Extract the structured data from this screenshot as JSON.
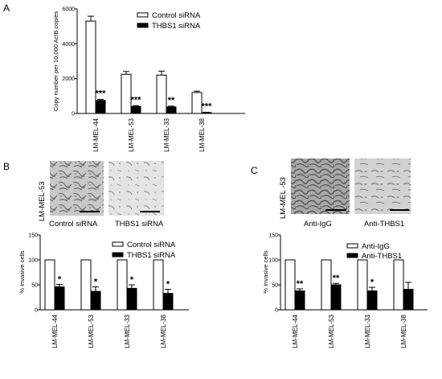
{
  "panels": {
    "A": {
      "label": "A"
    },
    "B": {
      "label": "B",
      "cell_line": "LM-MEL-53",
      "captions": [
        "Control siRNA",
        "THBS1 siRNA"
      ]
    },
    "C": {
      "label": "C",
      "cell_line": "LM-MEL -53",
      "captions": [
        "Anti-IgG",
        "Anti-THBS1"
      ]
    }
  },
  "chart_data": [
    {
      "id": "A",
      "type": "bar",
      "categories": [
        "LM-MEL-44",
        "LM-MEL-53",
        "LM-MEL-33",
        "LM-MEL-38"
      ],
      "ylabel": "Copy number per 10,000 ActB copies",
      "yticks": [
        "0",
        "2000",
        "4000",
        "6000"
      ],
      "ylim": [
        0,
        6000
      ],
      "series": [
        {
          "name": "Control siRNA",
          "fill": "#ffffff",
          "values": [
            5300,
            2250,
            2200,
            1200
          ],
          "errors": [
            280,
            160,
            230,
            80
          ]
        },
        {
          "name": "THBS1 siRNA",
          "fill": "#000000",
          "values": [
            750,
            400,
            370,
            50
          ],
          "errors": [
            60,
            50,
            50,
            20
          ]
        }
      ],
      "significance": [
        "***",
        "***",
        "**",
        "***"
      ],
      "legend_position": "top-right"
    },
    {
      "id": "B",
      "type": "bar",
      "categories": [
        "LM-MEL-44",
        "LM-MEL-53",
        "LM-MEL-33",
        "LM-MEL-38"
      ],
      "ylabel": "% Invasive cells",
      "yticks": [
        "0",
        "50",
        "100",
        "150"
      ],
      "ylim": [
        0,
        150
      ],
      "series": [
        {
          "name": "Control siRNA",
          "fill": "#ffffff",
          "values": [
            100,
            100,
            100,
            100
          ],
          "errors": [
            0,
            0,
            0,
            0
          ]
        },
        {
          "name": "THBS1 siRNA",
          "fill": "#000000",
          "values": [
            46,
            37,
            43,
            33
          ],
          "errors": [
            5,
            9,
            7,
            8
          ]
        }
      ],
      "significance": [
        "*",
        "*",
        "*",
        "*"
      ],
      "legend_position": "top-right"
    },
    {
      "id": "C",
      "type": "bar",
      "categories": [
        "LM-MEL-44",
        "LM-MEL-53",
        "LM-MEL-33",
        "LM-MEL-38"
      ],
      "ylabel": "% Invasive cells",
      "yticks": [
        "0",
        "50",
        "100",
        "150"
      ],
      "ylim": [
        0,
        150
      ],
      "series": [
        {
          "name": "Anti-IgG",
          "fill": "#ffffff",
          "values": [
            100,
            100,
            100,
            100
          ],
          "errors": [
            0,
            0,
            0,
            0
          ]
        },
        {
          "name": "Anti-THBS1",
          "fill": "#000000",
          "values": [
            38,
            50,
            38,
            41
          ],
          "errors": [
            4,
            3,
            7,
            14
          ]
        }
      ],
      "significance": [
        "**",
        "**",
        "*",
        ""
      ],
      "legend_position": "top-right"
    }
  ]
}
